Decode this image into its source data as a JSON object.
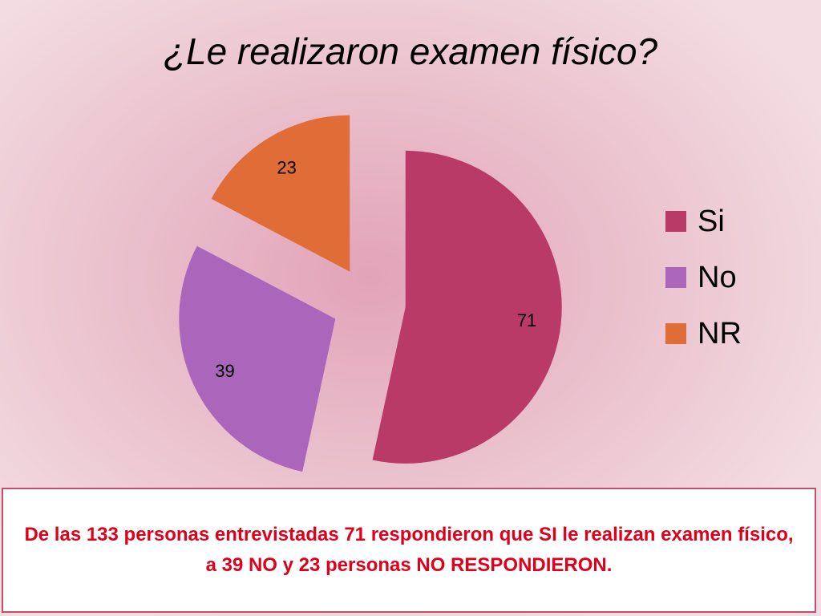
{
  "chart_data": {
    "type": "pie",
    "title": "¿Le realizaron examen físico?",
    "categories": [
      "Si",
      "No",
      "NR"
    ],
    "values": [
      71,
      39,
      23
    ],
    "colors": [
      "#b93a67",
      "#a966bb",
      "#e06d37"
    ],
    "legend": "right",
    "caption": "De  las 133 personas entrevistadas 71 respondieron que SI le realizan examen físico,  a 39 NO y 23 personas NO RESPONDIERON."
  }
}
